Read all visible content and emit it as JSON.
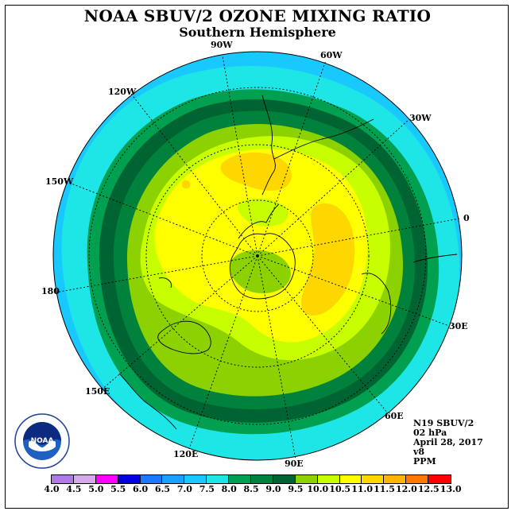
{
  "header": {
    "title": "NOAA SBUV/2 OZONE MIXING RATIO",
    "subtitle": "Southern Hemisphere"
  },
  "map": {
    "projection": "south polar stereographic",
    "longitude_labels": [
      "90W",
      "60W",
      "30W",
      "0",
      "30E",
      "60E",
      "90E",
      "120E",
      "150E",
      "180",
      "150W",
      "120W"
    ]
  },
  "info": {
    "satellite": "N19 SBUV/2",
    "level": "02 hPa",
    "date": "April 28, 2017",
    "version": "v8",
    "units": "PPM"
  },
  "colorbar": {
    "ticks": [
      "4.0",
      "4.5",
      "5.0",
      "5.5",
      "6.0",
      "6.5",
      "7.0",
      "7.5",
      "8.0",
      "8.5",
      "9.0",
      "9.5",
      "10.0",
      "10.5",
      "11.0",
      "11.5",
      "12.0",
      "12.5",
      "13.0"
    ],
    "colors": [
      "#b07ae6",
      "#d8a8ec",
      "#ff00ff",
      "#0000e0",
      "#1e78ff",
      "#1aa0ff",
      "#19c8ff",
      "#1ee6e6",
      "#00a050",
      "#00823c",
      "#006432",
      "#8cd200",
      "#c8ff00",
      "#ffff00",
      "#ffd700",
      "#ffb400",
      "#ff7800",
      "#ff0000",
      "#b45a28"
    ]
  },
  "logo": {
    "text": "NOAA"
  }
}
